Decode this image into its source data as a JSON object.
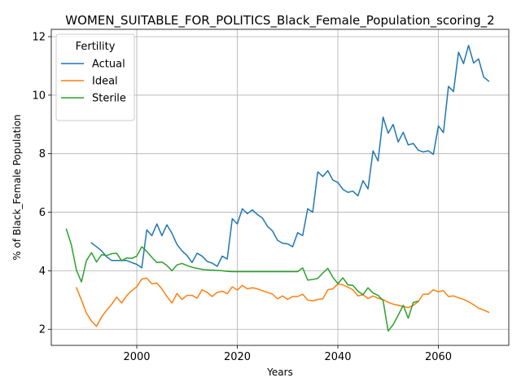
{
  "chart_data": {
    "type": "line",
    "title": "WOMEN_SUITABLE_FOR_POLITICS_Black_Female_Population_scoring_2",
    "xlabel": "Years",
    "ylabel": "% of Black_Female Population",
    "xlim": [
      1983,
      2074
    ],
    "ylim": [
      1.45,
      12.25
    ],
    "xticks": [
      2000,
      2020,
      2040,
      2060
    ],
    "yticks": [
      2,
      4,
      6,
      8,
      10,
      12
    ],
    "grid": true,
    "legend": {
      "title": "Fertility",
      "position": "upper-left"
    },
    "series": [
      {
        "name": "Actual",
        "color": "#1f77b4",
        "x": [
          1991,
          1992,
          1993,
          1994,
          1995,
          1996,
          1997,
          1998,
          1999,
          2000,
          2001,
          2002,
          2003,
          2004,
          2005,
          2006,
          2007,
          2008,
          2009,
          2010,
          2011,
          2012,
          2013,
          2014,
          2015,
          2016,
          2017,
          2018,
          2019,
          2020,
          2021,
          2022,
          2023,
          2024,
          2025,
          2026,
          2027,
          2028,
          2029,
          2030,
          2031,
          2032,
          2033,
          2034,
          2035,
          2036,
          2037,
          2038,
          2039,
          2040,
          2041,
          2042,
          2043,
          2044,
          2045,
          2046,
          2047,
          2048,
          2049,
          2050,
          2051,
          2052,
          2053,
          2054,
          2055,
          2056,
          2057,
          2058,
          2059,
          2060,
          2061,
          2062,
          2063,
          2064,
          2065,
          2066,
          2067,
          2068,
          2069,
          2070
        ],
        "values": [
          4.95,
          4.82,
          4.68,
          4.48,
          4.35,
          4.35,
          4.35,
          4.35,
          4.28,
          4.22,
          4.1,
          5.4,
          5.2,
          5.6,
          5.2,
          5.57,
          5.28,
          4.9,
          4.68,
          4.52,
          4.28,
          4.6,
          4.5,
          4.32,
          4.26,
          4.15,
          4.5,
          4.4,
          5.78,
          5.6,
          6.12,
          5.95,
          6.08,
          5.92,
          5.8,
          5.52,
          5.36,
          5.04,
          4.94,
          4.92,
          4.82,
          5.3,
          5.2,
          6.12,
          6.0,
          7.38,
          7.22,
          7.42,
          7.1,
          7.02,
          6.78,
          6.68,
          6.72,
          6.56,
          7.08,
          6.8,
          8.1,
          7.75,
          9.25,
          8.7,
          9.0,
          8.4,
          8.73,
          8.3,
          8.35,
          8.12,
          8.06,
          8.1,
          7.98,
          8.95,
          8.72,
          10.3,
          10.12,
          11.47,
          11.08,
          11.7,
          11.1,
          11.24,
          10.62,
          10.48
        ]
      },
      {
        "name": "Ideal",
        "color": "#ff7f0e",
        "x": [
          1988,
          1989,
          1990,
          1991,
          1992,
          1993,
          1994,
          1995,
          1996,
          1997,
          1998,
          1999,
          2000,
          2001,
          2002,
          2003,
          2004,
          2005,
          2006,
          2007,
          2008,
          2009,
          2010,
          2011,
          2012,
          2013,
          2014,
          2015,
          2016,
          2017,
          2018,
          2019,
          2020,
          2021,
          2022,
          2023,
          2024,
          2025,
          2026,
          2027,
          2028,
          2029,
          2030,
          2031,
          2032,
          2033,
          2034,
          2035,
          2036,
          2037,
          2038,
          2039,
          2040,
          2041,
          2042,
          2043,
          2044,
          2045,
          2046,
          2047,
          2048,
          2049,
          2050,
          2051,
          2052,
          2053,
          2054,
          2055,
          2056,
          2057,
          2058,
          2059,
          2060,
          2061,
          2062,
          2063,
          2064,
          2065,
          2066,
          2067,
          2068,
          2069,
          2070
        ],
        "values": [
          3.42,
          3.0,
          2.55,
          2.28,
          2.1,
          2.42,
          2.65,
          2.85,
          3.1,
          2.9,
          3.15,
          3.32,
          3.45,
          3.72,
          3.75,
          3.55,
          3.58,
          3.38,
          3.12,
          2.9,
          3.22,
          3.02,
          3.16,
          3.16,
          3.06,
          3.35,
          3.26,
          3.12,
          3.26,
          3.3,
          3.22,
          3.45,
          3.34,
          3.5,
          3.38,
          3.42,
          3.38,
          3.32,
          3.26,
          3.2,
          3.04,
          3.14,
          3.02,
          3.12,
          3.12,
          3.2,
          3.0,
          2.97,
          3.02,
          3.04,
          3.35,
          3.38,
          3.55,
          3.52,
          3.44,
          3.35,
          3.14,
          3.18,
          3.05,
          3.14,
          3.06,
          3.02,
          2.92,
          2.86,
          2.82,
          2.78,
          2.74,
          2.82,
          2.95,
          3.2,
          3.2,
          3.35,
          3.28,
          3.32,
          3.12,
          3.14,
          3.08,
          3.02,
          2.94,
          2.84,
          2.72,
          2.66,
          2.58
        ]
      },
      {
        "name": "Sterile",
        "color": "#2ca02c",
        "x": [
          1986,
          1987,
          1988,
          1989,
          1990,
          1991,
          1992,
          1993,
          1994,
          1995,
          1996,
          1997,
          1998,
          1999,
          2000,
          2001,
          2002,
          2003,
          2004,
          2005,
          2006,
          2007,
          2008,
          2009,
          2010,
          2011,
          2012,
          2013,
          2014,
          2015,
          2016,
          2017,
          2018,
          2019,
          2020,
          2021,
          2022,
          2023,
          2024,
          2025,
          2026,
          2027,
          2028,
          2029,
          2030,
          2031,
          2032,
          2033,
          2034,
          2035,
          2036,
          2037,
          2038,
          2039,
          2040,
          2041,
          2042,
          2043,
          2044,
          2045,
          2046,
          2047,
          2048,
          2049,
          2050,
          2051,
          2052,
          2053,
          2054,
          2055,
          2056
        ],
        "values": [
          5.42,
          4.88,
          4.02,
          3.62,
          4.35,
          4.62,
          4.3,
          4.55,
          4.52,
          4.58,
          4.6,
          4.34,
          4.44,
          4.42,
          4.5,
          4.82,
          4.66,
          4.46,
          4.28,
          4.3,
          4.18,
          4.0,
          4.2,
          4.25,
          4.18,
          4.12,
          4.08,
          4.05,
          4.03,
          4.02,
          4.01,
          4.0,
          3.98,
          3.97,
          3.97,
          3.97,
          3.97,
          3.97,
          3.97,
          3.97,
          3.97,
          3.97,
          3.97,
          3.97,
          3.97,
          3.97,
          3.97,
          4.1,
          3.68,
          3.7,
          3.74,
          3.92,
          4.08,
          3.78,
          3.56,
          3.76,
          3.52,
          3.5,
          3.3,
          3.18,
          3.42,
          3.24,
          3.16,
          2.98,
          1.94,
          2.16,
          2.48,
          2.82,
          2.38,
          2.92,
          2.96
        ]
      }
    ]
  }
}
